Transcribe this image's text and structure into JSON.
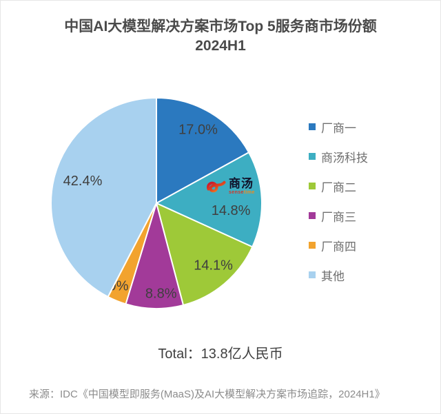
{
  "title": {
    "line1": "中国AI大模型解决方案市场Top 5服务商市场份额",
    "line2": "2024H1"
  },
  "chart_data": {
    "type": "pie",
    "title": "中国AI大模型解决方案市场Top 5服务商市场份额 2024H1",
    "categories": [
      "厂商一",
      "商汤科技",
      "厂商二",
      "厂商三",
      "厂商四",
      "其他"
    ],
    "values": [
      17.0,
      14.8,
      14.1,
      8.8,
      2.9,
      42.4
    ],
    "slice_labels": [
      "17.0%",
      "14.8%",
      "14.1%",
      "8.8%",
      "2.9%",
      "42.4%"
    ],
    "unit": "%",
    "colors": [
      "#2B79BF",
      "#3DAEC2",
      "#9EC938",
      "#A23A99",
      "#F2A32E",
      "#A8D1EF"
    ],
    "start_angle_deg": 0,
    "direction": "clockwise",
    "legend_position": "right",
    "total_annotation": "Total：13.8亿人民币"
  },
  "logo": {
    "name_cn": "商汤",
    "name_en_sense": "sense",
    "name_en_time": "time"
  },
  "source": {
    "text": "来源：IDC《中国模型即服务(MaaS)及AI大模型解决方案市场追踪，2024H1》"
  }
}
